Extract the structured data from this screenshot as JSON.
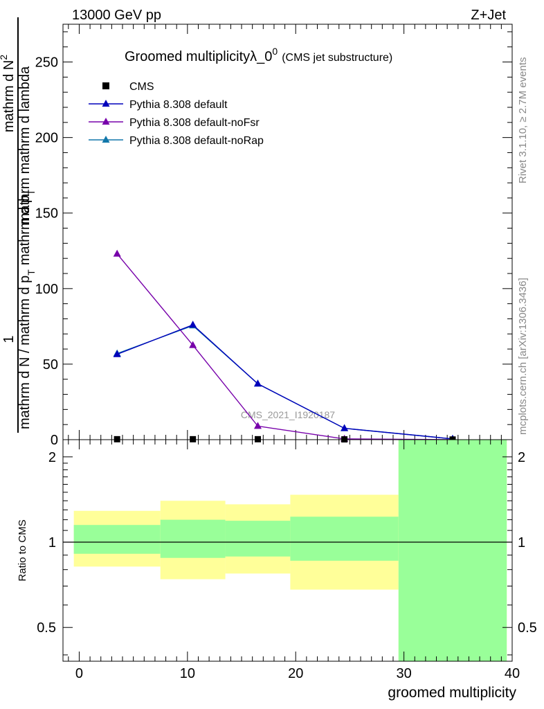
{
  "header": {
    "left": "13000 GeV pp",
    "right": "Z+Jet"
  },
  "side": {
    "rivet": "Rivet 3.1.10, ≥ 2.7M events",
    "mcplots": "mcplots.cern.ch [arXiv:1306.3436]"
  },
  "chart_data": [
    {
      "type": "line",
      "title": "Groomed multiplicityλ_0",
      "title_sup": "0",
      "subtitle": "(CMS jet substructure)",
      "ylabel_num": "1",
      "ylabel_den": "mathrm d N / mathrm d p",
      "ylabel_mid": "mathrm d p",
      "ylabel_top": "mathrm d N",
      "ylabel_top_sup": "2",
      "ylabel_lambda": "mathrm d lambda",
      "ylabel_sub": "T",
      "ylabel_mathrm": "mathrm",
      "watermark": "CMS_2021_I1920187",
      "xlim": [
        -1.5,
        40
      ],
      "ylim": [
        0,
        275
      ],
      "yticks": [
        0,
        50,
        100,
        150,
        200,
        250
      ],
      "grid": false,
      "legend_position": "top-left",
      "series": [
        {
          "name": "CMS",
          "color": "#000000",
          "marker": "square",
          "x": [
            3.5,
            10.5,
            16.5,
            24.5,
            34.5
          ],
          "y": [
            0.3,
            0.3,
            0.3,
            0.2,
            0.1
          ]
        },
        {
          "name": "Pythia 8.308 default",
          "color": "#0000bb",
          "marker": "triangle",
          "x": [
            3.5,
            10.5,
            16.5,
            24.5,
            34.5
          ],
          "y": [
            56.5,
            76,
            37,
            7.5,
            0.5
          ]
        },
        {
          "name": "Pythia 8.308 default-noFsr",
          "color": "#7700aa",
          "marker": "triangle",
          "x": [
            3.5,
            10.5,
            16.5,
            24.5,
            34.5
          ],
          "y": [
            123,
            62.5,
            9,
            0.5,
            0.05
          ]
        },
        {
          "name": "Pythia 8.308 default-noRap",
          "color": "#1177aa",
          "marker": "triangle",
          "x": [
            3.5,
            10.5,
            16.5,
            24.5,
            34.5
          ],
          "y": [
            57,
            75.5,
            37,
            7.5,
            0.5
          ]
        }
      ]
    },
    {
      "type": "area",
      "ylabel": "Ratio to CMS",
      "xlabel": "groomed multiplicity",
      "xlim": [
        -1.5,
        40
      ],
      "ylim": [
        0.38,
        2.3
      ],
      "ylog": true,
      "yticks": [
        0.5,
        1,
        2
      ],
      "ytick_labels": [
        "0.5",
        "1",
        "2"
      ],
      "xticks": [
        0,
        10,
        20,
        30,
        40
      ],
      "xtick_labels": [
        "0",
        "10",
        "20",
        "30",
        "40"
      ],
      "reference_line": 1,
      "bins": [
        {
          "xlow": -0.5,
          "xhigh": 7.5,
          "stat_low": 0.91,
          "stat_high": 1.15,
          "tot_low": 0.82,
          "tot_high": 1.29
        },
        {
          "xlow": 7.5,
          "xhigh": 13.5,
          "stat_low": 0.88,
          "stat_high": 1.2,
          "tot_low": 0.74,
          "tot_high": 1.4
        },
        {
          "xlow": 13.5,
          "xhigh": 19.5,
          "stat_low": 0.89,
          "stat_high": 1.19,
          "tot_low": 0.775,
          "tot_high": 1.36
        },
        {
          "xlow": 19.5,
          "xhigh": 29.5,
          "stat_low": 0.86,
          "stat_high": 1.23,
          "tot_low": 0.68,
          "tot_high": 1.47
        },
        {
          "xlow": 29.5,
          "xhigh": 39.5,
          "stat_low": 0.38,
          "stat_high": 2.3,
          "tot_low": 0.38,
          "tot_high": 2.3
        }
      ],
      "colors": {
        "stat": "#99ff99",
        "total": "#ffff99"
      }
    }
  ]
}
